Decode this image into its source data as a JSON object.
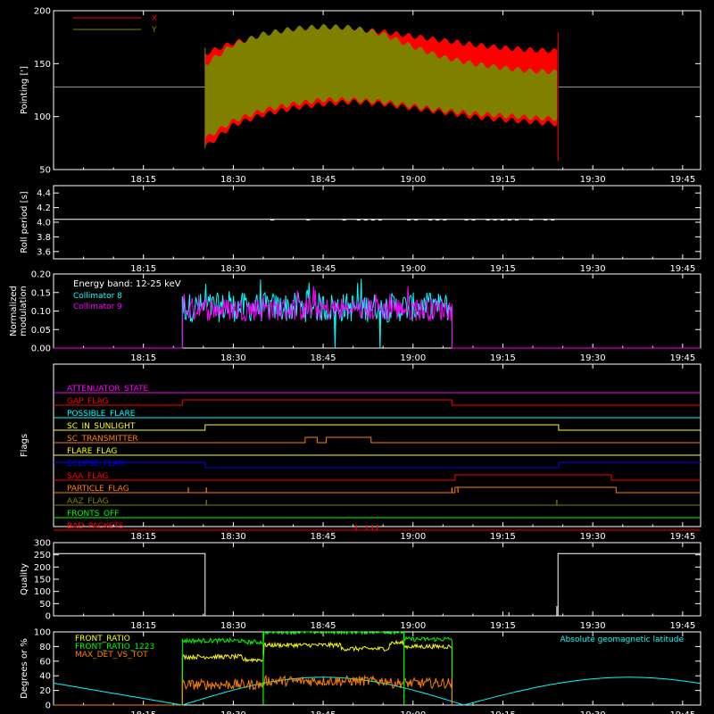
{
  "time_axis": {
    "labels": [
      "18:15",
      "18:30",
      "18:45",
      "19:00",
      "19:15",
      "19:30",
      "19:45"
    ],
    "tick_minutes": [
      15,
      30,
      45,
      60,
      75,
      90,
      105
    ],
    "range_minutes": [
      0,
      108
    ],
    "minute_origin_label": "18:00"
  },
  "colors": {
    "x_series": "#ff0000",
    "y_series": "#808000",
    "white": "#ffffff",
    "cyan": "#00ffff",
    "magenta": "#ff00ff",
    "green": "#00ff00",
    "yellow": "#ffff00",
    "orange": "#ff8000",
    "blue": "#0000ff"
  },
  "chart_data": [
    {
      "type": "area",
      "panel": "pointing",
      "ylabel": "Pointing [']",
      "ylim": [
        50,
        200
      ],
      "yticks": [
        50,
        100,
        150,
        200
      ],
      "legend": {
        "placement": "top-left",
        "entries": [
          {
            "name": "X",
            "color": "#ff0000"
          },
          {
            "name": "Y",
            "color": "#808000"
          }
        ]
      },
      "baseline": 128,
      "active_range_minutes": [
        25.3,
        84.2
      ],
      "series": [
        {
          "name": "X",
          "envelope": [
            {
              "t": 25.5,
              "lo": 72,
              "hi": 160
            },
            {
              "t": 30,
              "lo": 92,
              "hi": 170
            },
            {
              "t": 35,
              "lo": 102,
              "hi": 176
            },
            {
              "t": 40,
              "lo": 108,
              "hi": 180
            },
            {
              "t": 45,
              "lo": 112,
              "hi": 182
            },
            {
              "t": 50,
              "lo": 114,
              "hi": 183
            },
            {
              "t": 55,
              "lo": 112,
              "hi": 180
            },
            {
              "t": 60,
              "lo": 108,
              "hi": 176
            },
            {
              "t": 65,
              "lo": 104,
              "hi": 172
            },
            {
              "t": 70,
              "lo": 100,
              "hi": 168
            },
            {
              "t": 75,
              "lo": 97,
              "hi": 165
            },
            {
              "t": 80,
              "lo": 95,
              "hi": 163
            },
            {
              "t": 84,
              "lo": 93,
              "hi": 162
            }
          ]
        },
        {
          "name": "Y",
          "envelope": [
            {
              "t": 25.5,
              "lo": 80,
              "hi": 150
            },
            {
              "t": 30,
              "lo": 96,
              "hi": 168
            },
            {
              "t": 35,
              "lo": 106,
              "hi": 178
            },
            {
              "t": 40,
              "lo": 112,
              "hi": 183
            },
            {
              "t": 45,
              "lo": 116,
              "hi": 185
            },
            {
              "t": 50,
              "lo": 116,
              "hi": 184
            },
            {
              "t": 55,
              "lo": 114,
              "hi": 178
            },
            {
              "t": 60,
              "lo": 110,
              "hi": 166
            },
            {
              "t": 65,
              "lo": 106,
              "hi": 156
            },
            {
              "t": 70,
              "lo": 103,
              "hi": 150
            },
            {
              "t": 75,
              "lo": 101,
              "hi": 146
            },
            {
              "t": 80,
              "lo": 99,
              "hi": 143
            },
            {
              "t": 84,
              "lo": 98,
              "hi": 142
            }
          ]
        }
      ]
    },
    {
      "type": "line",
      "panel": "roll",
      "ylabel": "Roll period [s]",
      "ylim": [
        3.5,
        4.5
      ],
      "yticks": [
        3.6,
        3.8,
        4.0,
        4.2,
        4.4
      ],
      "series": [
        {
          "x": [
            0,
            108
          ],
          "y": [
            4.04,
            4.04
          ]
        }
      ],
      "speckle_range_minutes": [
        35,
        84
      ],
      "speckle_value": 4.03
    },
    {
      "type": "line",
      "panel": "modulation",
      "ylabel": "Normalized modulation",
      "ylim": [
        0.0,
        0.2
      ],
      "yticks": [
        0.0,
        0.05,
        0.1,
        0.15,
        0.2
      ],
      "annotation": "Energy band: 12-25 keV",
      "active_range_minutes": [
        21.5,
        66.5
      ],
      "series": [
        {
          "name": "Collimator 8",
          "color": "#00ffff",
          "mean": 0.11,
          "spread": 0.05,
          "dips_minutes": [
            47,
            54.5
          ]
        },
        {
          "name": "Collimator 9",
          "color": "#ff00ff",
          "mean": 0.105,
          "spread": 0.04,
          "dips_minutes": []
        }
      ]
    },
    {
      "type": "table",
      "panel": "flags",
      "ylabel": "Flags",
      "flags": [
        {
          "name": "ATTENUATOR_STATE",
          "color": "#ff00ff",
          "steps": []
        },
        {
          "name": "GAP_FLAG",
          "color": "#ff0000",
          "steps": [
            [
              0,
              0
            ],
            [
              21.5,
              1
            ],
            [
              66.5,
              0
            ]
          ]
        },
        {
          "name": "POSSIBLE_FLARE",
          "color": "#00ffff",
          "steps": []
        },
        {
          "name": "SC_IN_SUNLIGHT",
          "color": "#ffff00",
          "steps": [
            [
              0,
              0
            ],
            [
              25.3,
              1
            ],
            [
              84.2,
              0
            ]
          ]
        },
        {
          "name": "SC_TRANSMITTER",
          "color": "#ff8000",
          "steps": [
            [
              0,
              0
            ],
            [
              42,
              1
            ],
            [
              44,
              0
            ],
            [
              45.5,
              1
            ],
            [
              53,
              0
            ]
          ]
        },
        {
          "name": "FLARE_FLAG",
          "color": "#ffff00",
          "steps": []
        },
        {
          "name": "ECLIPSE_FLAG",
          "color": "#0000ff",
          "steps": [
            [
              0,
              1
            ],
            [
              25.3,
              0
            ],
            [
              84.2,
              1
            ]
          ]
        },
        {
          "name": "SAA_FLAG",
          "color": "#ff0000",
          "steps": [
            [
              0,
              0
            ],
            [
              67,
              1
            ],
            [
              93,
              0
            ]
          ]
        },
        {
          "name": "PARTICLE_FLAG",
          "color": "#ff8000",
          "steps": [
            [
              0,
              0
            ],
            [
              67,
              1
            ],
            [
              93.8,
              0
            ]
          ],
          "spikes": [
            22.5,
            25.5,
            66.5,
            67.5
          ]
        },
        {
          "name": "AAZ_FLAG",
          "color": "#808000",
          "steps": [],
          "spikes": [
            25.5,
            84
          ]
        },
        {
          "name": "FRONTS_OFF",
          "color": "#00ff00",
          "steps": []
        },
        {
          "name": "BAD_PACKETS",
          "color": "#ff0000",
          "steps": [],
          "spikes": [
            50.5,
            52.3,
            53.2,
            54
          ]
        }
      ]
    },
    {
      "type": "line",
      "panel": "quality",
      "ylabel": "Quality",
      "ylim": [
        0,
        300
      ],
      "yticks": [
        0,
        50,
        100,
        150,
        200,
        250,
        300
      ],
      "series": [
        {
          "x": [
            0,
            25.3,
            25.3,
            84.2,
            84.2,
            108
          ],
          "y": [
            255,
            255,
            0,
            0,
            255,
            255
          ]
        }
      ],
      "spikes": [
        {
          "t": 76,
          "v": 15
        },
        {
          "t": 84,
          "v": 40
        }
      ]
    },
    {
      "type": "line",
      "panel": "ratios",
      "ylabel": "Degrees or %",
      "ylim": [
        0,
        100
      ],
      "yticks": [
        0,
        20,
        40,
        60,
        80,
        100
      ],
      "annotation": "Absolute geomagnetic latitude",
      "legend": {
        "placement": "top-left",
        "entries": [
          {
            "name": "FRONT_RATIO",
            "color": "#ffff00"
          },
          {
            "name": "FRONT_RATIO_1223",
            "color": "#00ff00"
          },
          {
            "name": "MAX_DET_VS_TOT",
            "color": "#ff8000"
          }
        ]
      },
      "active_range_minutes": [
        21.5,
        66.5
      ],
      "series": [
        {
          "name": "FRONT_RATIO",
          "color": "#ffff00",
          "levels": [
            [
              21.5,
              66
            ],
            [
              31.5,
              62
            ],
            [
              35,
              82
            ],
            [
              48,
              77
            ],
            [
              56,
              85
            ],
            [
              58.5,
              80
            ],
            [
              66.5,
              0
            ]
          ]
        },
        {
          "name": "FRONT_RATIO_1223",
          "color": "#00ff00",
          "levels": [
            [
              21.5,
              88
            ],
            [
              31.5,
              86
            ],
            [
              35,
              100
            ],
            [
              56,
              100
            ],
            [
              58.5,
              90
            ],
            [
              66.5,
              0
            ]
          ]
        },
        {
          "name": "MAX_DET_VS_TOT",
          "color": "#ff8000",
          "levels": [
            [
              21.5,
              28
            ],
            [
              35,
              33
            ],
            [
              56,
              30
            ],
            [
              66.5,
              0
            ]
          ]
        },
        {
          "name": "Absolute geomagnetic latitude",
          "color": "#00ffff",
          "peaks": [
            {
              "t": 0,
              "v": 30
            },
            {
              "t": 45,
              "v": 38
            },
            {
              "t": 96,
              "v": 38
            }
          ],
          "troughs": [
            {
              "t": 21.5,
              "v": 0
            },
            {
              "t": 68.5,
              "v": 0
            }
          ]
        }
      ]
    }
  ]
}
